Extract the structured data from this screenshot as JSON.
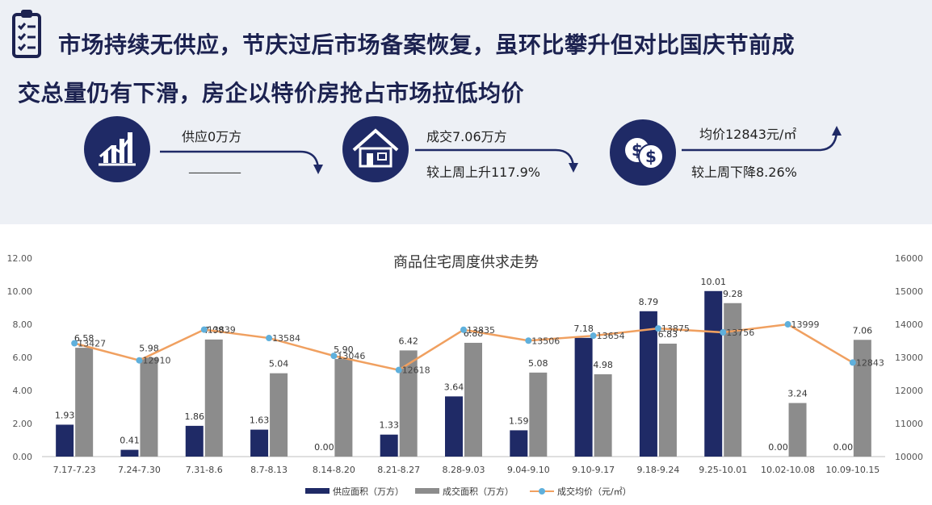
{
  "header": {
    "line1": "市场持续无供应，节庆过后市场备案恢复，虽环比攀升但对比国庆节前成",
    "line2": "交总量仍有下滑，房企以特价房抢占市场拉低均价"
  },
  "stats": {
    "supply_label": "供应0万方",
    "supply_sub": "________",
    "deal_label": "成交7.06万方",
    "deal_change": "较上周上升117.9%",
    "price_label": "均价12843元/㎡",
    "price_change": "较上周下降8.26%"
  },
  "icons": {
    "clipboard": "clipboard-checklist-icon",
    "supply": "bar-chart-icon",
    "deal": "house-icon",
    "price": "dollar-coins-icon"
  },
  "colors": {
    "supply_bar": "#1f2a66",
    "deal_bar": "#8c8c8c",
    "price_line": "#f0a060",
    "price_marker": "#5fb0dc",
    "header_bg": "#edf0f5",
    "header_text": "#1c2250"
  },
  "chart_data": {
    "type": "bar",
    "title": "商品住宅周度供求走势",
    "categories": [
      "7.17-7.23",
      "7.24-7.30",
      "7.31-8.6",
      "8.7-8.13",
      "8.14-8.20",
      "8.21-8.27",
      "8.28-9.03",
      "9.04-9.10",
      "9.10-9.17",
      "9.18-9.24",
      "9.25-10.01",
      "10.02-10.08",
      "10.09-10.15"
    ],
    "series": [
      {
        "name": "供应面积（万方）",
        "type": "bar",
        "axis": "left",
        "values": [
          1.93,
          0.41,
          1.86,
          1.63,
          0.0,
          1.33,
          3.64,
          1.59,
          7.18,
          8.79,
          10.01,
          0.0,
          0.0
        ],
        "labels": [
          "1.93",
          "0.41",
          "1.86",
          "1.63",
          "0.00",
          "1.33",
          "3.64",
          "1.59",
          "7.18",
          "8.79",
          "10.01",
          "0.00",
          "0.00"
        ]
      },
      {
        "name": "成交面积（万方）",
        "type": "bar",
        "axis": "left",
        "values": [
          6.58,
          5.98,
          7.08,
          5.04,
          5.9,
          6.42,
          6.88,
          5.08,
          4.98,
          6.83,
          9.28,
          3.24,
          7.06
        ],
        "labels": [
          "6.58",
          "5.98",
          "7.08",
          "5.04",
          "5.90",
          "6.42",
          "6.88",
          "5.08",
          "4.98",
          "6.83",
          "9.28",
          "3.24",
          "7.06"
        ]
      },
      {
        "name": "成交均价（元/㎡）",
        "type": "line",
        "axis": "right",
        "values": [
          13427,
          12910,
          13839,
          13584,
          13046,
          12618,
          13835,
          13506,
          13654,
          13875,
          13756,
          13999,
          12843
        ],
        "labels": [
          "13427",
          "12910",
          "13839",
          "13584",
          "13046",
          "12618",
          "13835",
          "13506",
          "13654",
          "13875",
          "13756",
          "13999",
          "12843"
        ]
      }
    ],
    "ylim_left": [
      0,
      12
    ],
    "yticks_left": [
      "0.00",
      "2.00",
      "4.00",
      "6.00",
      "8.00",
      "10.00",
      "12.00"
    ],
    "ylim_right": [
      10000,
      16000
    ],
    "yticks_right": [
      "10000",
      "11000",
      "12000",
      "13000",
      "14000",
      "15000",
      "16000"
    ],
    "grid": false,
    "legend_position": "bottom"
  }
}
